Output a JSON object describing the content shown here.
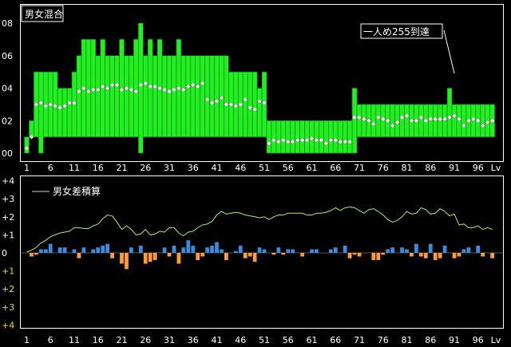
{
  "colors": {
    "background": "#000000",
    "panel_border": "#ffffff",
    "bar_green": "#22ee22",
    "bar_edge": "#0a7a0a",
    "diamond": "#ffffff",
    "blue": "#3d8be0",
    "orange": "#ff9a3c",
    "line_green": "#aaee66",
    "neg_label": "#eedd22"
  },
  "chart_data": [
    {
      "type": "bar",
      "title": "男女混合",
      "annotation": "一人め255到達",
      "annotation_target_level": 91,
      "y_tick_labels": [
        "00",
        "02",
        "04",
        "06",
        "08"
      ],
      "x_tick_labels": [
        "1",
        "6",
        "11",
        "16",
        "21",
        "26",
        "31",
        "36",
        "41",
        "46",
        "51",
        "56",
        "61",
        "66",
        "71",
        "76",
        "81",
        "86",
        "91",
        "96",
        "Lv"
      ],
      "x_tick_levels": [
        1,
        6,
        11,
        16,
        21,
        26,
        31,
        36,
        41,
        46,
        51,
        56,
        61,
        66,
        71,
        76,
        81,
        86,
        91,
        96
      ],
      "ylim": [
        0,
        8
      ],
      "levels": [
        1,
        2,
        3,
        4,
        5,
        6,
        7,
        8,
        9,
        10,
        11,
        12,
        13,
        14,
        15,
        16,
        17,
        18,
        19,
        20,
        21,
        22,
        23,
        24,
        25,
        26,
        27,
        28,
        29,
        30,
        31,
        32,
        33,
        34,
        35,
        36,
        37,
        38,
        39,
        40,
        41,
        42,
        43,
        44,
        45,
        46,
        47,
        48,
        49,
        50,
        51,
        52,
        53,
        54,
        55,
        56,
        57,
        58,
        59,
        60,
        61,
        62,
        63,
        64,
        65,
        66,
        67,
        68,
        69,
        70,
        71,
        72,
        73,
        74,
        75,
        76,
        77,
        78,
        79,
        80,
        81,
        82,
        83,
        84,
        85,
        86,
        87,
        88,
        89,
        90,
        91,
        92,
        93,
        94,
        95,
        96,
        97,
        98,
        99
      ],
      "bar_low": [
        0,
        1,
        1,
        0,
        1,
        1,
        1,
        1,
        1,
        1,
        1,
        1,
        1,
        1,
        1,
        1,
        1,
        1,
        1,
        1,
        1,
        1,
        1,
        1,
        0,
        1,
        1,
        1,
        1,
        1,
        1,
        1,
        1,
        1,
        1,
        1,
        1,
        1,
        1,
        1,
        1,
        1,
        1,
        1,
        1,
        1,
        1,
        1,
        1,
        1,
        1,
        0,
        0,
        0,
        0,
        0,
        0,
        0,
        0,
        0,
        0,
        0,
        0,
        0,
        0,
        0,
        0,
        0,
        0,
        0,
        1,
        1,
        1,
        1,
        1,
        1,
        1,
        1,
        1,
        1,
        1,
        1,
        1,
        1,
        1,
        1,
        1,
        1,
        1,
        1,
        1,
        1,
        1,
        1,
        1,
        1,
        1,
        1,
        1
      ],
      "bar_high": [
        1,
        2,
        5,
        5,
        5,
        5,
        5,
        4,
        4,
        4,
        5,
        6,
        7,
        7,
        7,
        6,
        7,
        6,
        6,
        6,
        7,
        6,
        6,
        7,
        8,
        6,
        7,
        6,
        7,
        6,
        6,
        6,
        7,
        6,
        6,
        6,
        6,
        6,
        6,
        6,
        6,
        6,
        6,
        5,
        5,
        5,
        5,
        5,
        5,
        4,
        5,
        2,
        2,
        2,
        2,
        2,
        2,
        2,
        2,
        2,
        2,
        2,
        2,
        2,
        2,
        2,
        2,
        2,
        2,
        4,
        3,
        3,
        3,
        3,
        3,
        3,
        3,
        3,
        3,
        3,
        3,
        3,
        3,
        3,
        3,
        3,
        3,
        3,
        3,
        4,
        3,
        3,
        3,
        3,
        3,
        3,
        3,
        3,
        3
      ],
      "average": [
        0.3,
        1.0,
        3.0,
        3.1,
        2.9,
        3.0,
        2.9,
        2.8,
        2.9,
        3.1,
        3.1,
        3.8,
        4.0,
        3.8,
        3.9,
        3.9,
        4.1,
        4.0,
        4.2,
        4.2,
        3.9,
        4.0,
        3.9,
        3.8,
        4.2,
        4.3,
        4.1,
        4.1,
        4.0,
        3.9,
        3.8,
        3.9,
        4.0,
        3.9,
        4.1,
        4.2,
        4.1,
        4.3,
        3.3,
        3.1,
        3.2,
        3.4,
        3.0,
        3.0,
        2.9,
        3.0,
        3.3,
        2.8,
        2.7,
        3.2,
        3.1,
        0.6,
        0.8,
        0.7,
        0.8,
        0.7,
        0.7,
        0.8,
        0.8,
        0.8,
        0.9,
        0.8,
        0.8,
        0.6,
        0.8,
        0.8,
        0.7,
        0.7,
        0.7,
        2.2,
        2.2,
        2.1,
        2.0,
        1.8,
        2.2,
        2.1,
        2.0,
        1.7,
        1.9,
        2.2,
        2.3,
        2.0,
        2.0,
        2.2,
        2.0,
        2.1,
        2.1,
        2.1,
        2.1,
        2.2,
        2.3,
        2.1,
        1.7,
        2.0,
        2.1,
        2.0,
        1.7,
        1.9,
        2.0
      ]
    },
    {
      "type": "bar",
      "legend": "男女差積算",
      "y_tick_labels": [
        "+4",
        "+3",
        "+2",
        "+1",
        "0",
        "+1",
        "+2",
        "+3",
        "+4"
      ],
      "x_tick_labels": [
        "1",
        "6",
        "11",
        "16",
        "21",
        "26",
        "31",
        "36",
        "41",
        "46",
        "51",
        "56",
        "61",
        "66",
        "71",
        "76",
        "81",
        "86",
        "91",
        "96",
        "Lv"
      ],
      "ylim": [
        -4,
        4
      ],
      "levels": [
        1,
        2,
        3,
        4,
        5,
        6,
        7,
        8,
        9,
        10,
        11,
        12,
        13,
        14,
        15,
        16,
        17,
        18,
        19,
        20,
        21,
        22,
        23,
        24,
        25,
        26,
        27,
        28,
        29,
        30,
        31,
        32,
        33,
        34,
        35,
        36,
        37,
        38,
        39,
        40,
        41,
        42,
        43,
        44,
        45,
        46,
        47,
        48,
        49,
        50,
        51,
        52,
        53,
        54,
        55,
        56,
        57,
        58,
        59,
        60,
        61,
        62,
        63,
        64,
        65,
        66,
        67,
        68,
        69,
        70,
        71,
        72,
        73,
        74,
        75,
        76,
        77,
        78,
        79,
        80,
        81,
        82,
        83,
        84,
        85,
        86,
        87,
        88,
        89,
        90,
        91,
        92,
        93,
        94,
        95,
        96,
        97,
        98,
        99
      ],
      "difference": [
        0,
        -0.2,
        -0.1,
        0.2,
        0.2,
        0.5,
        0,
        0.3,
        0.3,
        0,
        0.2,
        -0.3,
        0.3,
        0,
        0.2,
        0.3,
        0.4,
        0.5,
        -0.3,
        0,
        -0.6,
        -0.9,
        0.3,
        0,
        0.4,
        -0.6,
        -0.5,
        -0.4,
        0,
        0.3,
        -0.2,
        0.4,
        -0.6,
        0.3,
        0.7,
        0.4,
        -0.4,
        -0.2,
        0.3,
        0.4,
        0.6,
        0.2,
        -0.4,
        0,
        0.1,
        0.4,
        -0.3,
        -0.2,
        -0.5,
        0.3,
        0.2,
        0,
        -0.1,
        0.3,
        -0.1,
        0.2,
        0.2,
        0,
        -0.2,
        0,
        0.2,
        0.2,
        0,
        0,
        0.2,
        0.3,
        0,
        0.4,
        -0.3,
        -0.1,
        -0.2,
        0,
        0,
        -0.4,
        -0.4,
        -0.1,
        0.2,
        0.3,
        0,
        0.3,
        0.2,
        -0.2,
        0.5,
        -0.2,
        -0.3,
        0.5,
        -0.4,
        -0.3,
        0.4,
        0,
        -0.3,
        -0.2,
        0.2,
        0.3,
        0,
        0.4,
        -0.2,
        0,
        -0.3
      ],
      "cumulative": [
        0.05,
        0.15,
        0.3,
        0.55,
        0.7,
        0.9,
        1.0,
        1.1,
        1.15,
        1.2,
        1.4,
        1.4,
        1.35,
        1.35,
        1.5,
        1.6,
        1.9,
        2.1,
        2.05,
        1.7,
        1.3,
        1.5,
        1.3,
        1.0,
        1.05,
        1.3,
        1.0,
        1.05,
        1.2,
        1.15,
        1.4,
        1.4,
        1.1,
        0.95,
        1.15,
        1.2,
        1.4,
        1.55,
        1.6,
        1.75,
        2.1,
        2.3,
        2.15,
        2.2,
        2.25,
        2.2,
        2.1,
        2.05,
        2.0,
        1.95,
        2.0,
        1.85,
        2.0,
        2.1,
        2.1,
        2.2,
        2.2,
        2.2,
        2.2,
        2.1,
        2.1,
        2.2,
        2.2,
        2.25,
        2.35,
        2.5,
        2.35,
        2.5,
        2.55,
        2.5,
        2.35,
        2.2,
        2.4,
        2.45,
        2.3,
        2.1,
        1.85,
        1.7,
        1.8,
        2.0,
        2.3,
        2.15,
        2.2,
        2.5,
        2.4,
        2.15,
        2.2,
        2.45,
        2.3,
        2.05,
        2.15,
        1.55,
        1.6,
        1.4,
        1.4,
        1.5,
        1.3,
        1.4,
        1.3
      ]
    }
  ]
}
